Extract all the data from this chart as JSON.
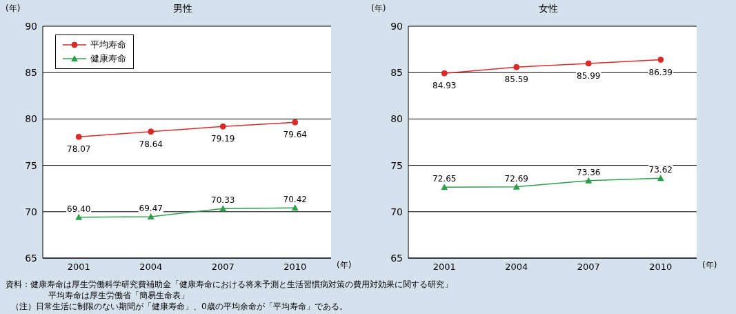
{
  "chart_data": [
    {
      "type": "line",
      "title": "男性",
      "ylabel": "(年)",
      "xlabel": "(年)",
      "categories": [
        "2001",
        "2004",
        "2007",
        "2010"
      ],
      "ylim": [
        65,
        90
      ],
      "yticks": [
        65,
        70,
        75,
        80,
        85,
        90
      ],
      "grid": "y",
      "legend": "top left",
      "series": [
        {
          "name": "平均寿命",
          "color": "#d92b2b",
          "marker": "circle",
          "values": [
            78.07,
            78.64,
            79.19,
            79.64
          ],
          "value_labels": [
            "78.07",
            "78.64",
            "79.19",
            "79.64"
          ]
        },
        {
          "name": "健康寿命",
          "color": "#2e9e4a",
          "marker": "triangle",
          "values": [
            69.4,
            69.47,
            70.33,
            70.42
          ],
          "value_labels": [
            "69.40",
            "69.47",
            "70.33",
            "70.42"
          ]
        }
      ],
      "annotations": [
        "資料：健康寿命は厚生労働科学研究費補助金「健康寿命における将来予測と生活習慣病対策の費用対効果に関する研究」",
        "平均寿命は厚生労働省「簡易生命表」",
        "（注）日常生活に制限のない期間が「健康寿命」、0歳の平均余命が「平均寿命」である。"
      ]
    },
    {
      "type": "line",
      "title": "女性",
      "ylabel": "(年)",
      "xlabel": "(年)",
      "categories": [
        "2001",
        "2004",
        "2007",
        "2010"
      ],
      "ylim": [
        65,
        90
      ],
      "yticks": [
        65,
        70,
        75,
        80,
        85,
        90
      ],
      "grid": "y",
      "series": [
        {
          "color": "#d92b2b",
          "marker": "circle",
          "values": [
            84.93,
            85.59,
            85.99,
            86.39
          ],
          "value_labels": [
            "84.93",
            "85.59",
            "85.99",
            "86.39"
          ]
        },
        {
          "color": "#2e9e4a",
          "marker": "triangle",
          "values": [
            72.65,
            72.69,
            73.36,
            73.62
          ],
          "value_labels": [
            "72.65",
            "72.69",
            "73.36",
            "73.62"
          ]
        }
      ]
    }
  ]
}
